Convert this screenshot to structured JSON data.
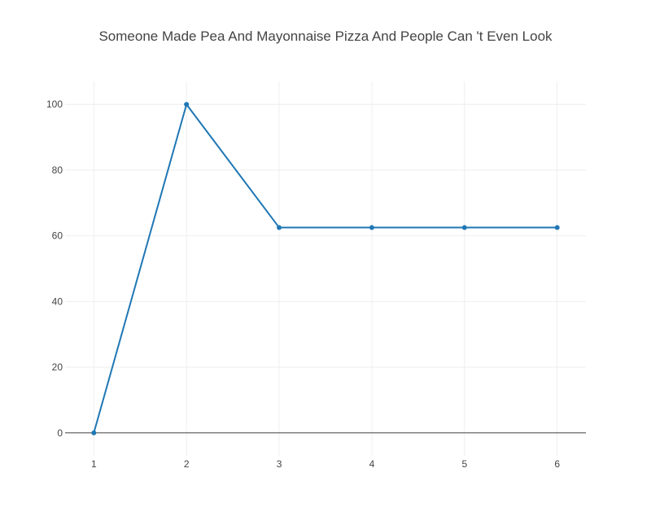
{
  "chart_data": {
    "type": "line",
    "title": "Someone Made Pea And Mayonnaise Pizza And People Can 't Even Look",
    "xlabel": "",
    "ylabel": "",
    "x": [
      1,
      2,
      3,
      4,
      5,
      6
    ],
    "series": [
      {
        "values": [
          0,
          100,
          62.5,
          62.5,
          62.5,
          62.5
        ]
      }
    ],
    "xlim": [
      0.69,
      6.31
    ],
    "ylim": [
      -7,
      107
    ],
    "xticks": [
      "1",
      "2",
      "3",
      "4",
      "5",
      "6"
    ],
    "yticks": [
      "0",
      "20",
      "40",
      "60",
      "80",
      "100"
    ],
    "grid": true,
    "legend": "none",
    "colors": {
      "series": "#1f77b4",
      "grid": "#eeeeee",
      "zero_line": "#444444",
      "text": "#444444"
    }
  }
}
